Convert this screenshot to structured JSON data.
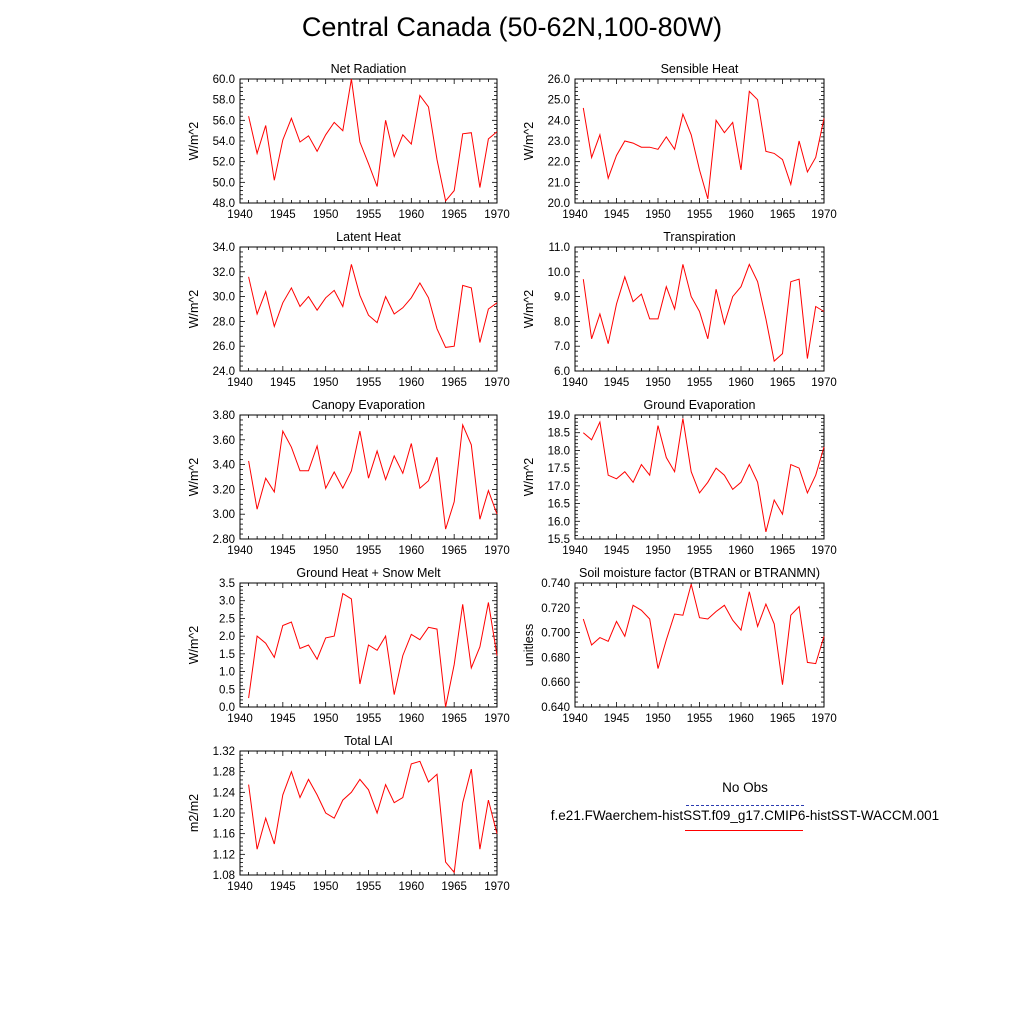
{
  "title": "Central Canada (50-62N,100-80W)",
  "line_color": "#ff0000",
  "obs_color": "#2b3bb0",
  "chart_data": [
    {
      "type": "line",
      "title": "Net Radiation",
      "ylabel": "W/m^2",
      "xlim": [
        1940,
        1970
      ],
      "ylim": [
        48.0,
        60.0
      ],
      "xticks": [
        1940,
        1945,
        1950,
        1955,
        1960,
        1965,
        1970
      ],
      "yticks": [
        "48.0",
        "50.0",
        "52.0",
        "54.0",
        "56.0",
        "58.0",
        "60.0"
      ],
      "x": [
        1941,
        1942,
        1943,
        1944,
        1945,
        1946,
        1947,
        1948,
        1949,
        1950,
        1951,
        1952,
        1953,
        1954,
        1955,
        1956,
        1957,
        1958,
        1959,
        1960,
        1961,
        1962,
        1963,
        1964,
        1965,
        1966,
        1967,
        1968,
        1969,
        1970
      ],
      "y": [
        56.4,
        52.8,
        55.5,
        50.2,
        54.1,
        56.2,
        53.9,
        54.5,
        53.0,
        54.6,
        55.8,
        55.0,
        60.0,
        53.9,
        51.8,
        49.6,
        56.0,
        52.5,
        54.6,
        53.7,
        58.4,
        57.3,
        52.2,
        48.2,
        49.2,
        54.7,
        54.8,
        49.5,
        54.2,
        54.9
      ]
    },
    {
      "type": "line",
      "title": "Sensible Heat",
      "ylabel": "W/m^2",
      "xlim": [
        1940,
        1970
      ],
      "ylim": [
        20.0,
        26.0
      ],
      "xticks": [
        1940,
        1945,
        1950,
        1955,
        1960,
        1965,
        1970
      ],
      "yticks": [
        "20.0",
        "21.0",
        "22.0",
        "23.0",
        "24.0",
        "25.0",
        "26.0"
      ],
      "x": [
        1941,
        1942,
        1943,
        1944,
        1945,
        1946,
        1947,
        1948,
        1949,
        1950,
        1951,
        1952,
        1953,
        1954,
        1955,
        1956,
        1957,
        1958,
        1959,
        1960,
        1961,
        1962,
        1963,
        1964,
        1965,
        1966,
        1967,
        1968,
        1969,
        1970
      ],
      "y": [
        24.6,
        22.2,
        23.3,
        21.2,
        22.3,
        23.0,
        22.9,
        22.7,
        22.7,
        22.6,
        23.2,
        22.6,
        24.3,
        23.3,
        21.6,
        20.2,
        24.0,
        23.4,
        23.9,
        21.6,
        25.4,
        25.0,
        22.5,
        22.4,
        22.1,
        20.9,
        23.0,
        21.5,
        22.2,
        24.1
      ]
    },
    {
      "type": "line",
      "title": "Latent Heat",
      "ylabel": "W/m^2",
      "xlim": [
        1940,
        1970
      ],
      "ylim": [
        24.0,
        34.0
      ],
      "xticks": [
        1940,
        1945,
        1950,
        1955,
        1960,
        1965,
        1970
      ],
      "yticks": [
        "24.0",
        "26.0",
        "28.0",
        "30.0",
        "32.0",
        "34.0"
      ],
      "x": [
        1941,
        1942,
        1943,
        1944,
        1945,
        1946,
        1947,
        1948,
        1949,
        1950,
        1951,
        1952,
        1953,
        1954,
        1955,
        1956,
        1957,
        1958,
        1959,
        1960,
        1961,
        1962,
        1963,
        1964,
        1965,
        1966,
        1967,
        1968,
        1969,
        1970
      ],
      "y": [
        31.6,
        28.6,
        30.4,
        27.6,
        29.5,
        30.7,
        29.2,
        30.0,
        28.9,
        29.9,
        30.5,
        29.2,
        32.6,
        30.1,
        28.5,
        27.9,
        30.0,
        28.6,
        29.1,
        29.9,
        31.1,
        29.9,
        27.4,
        25.9,
        26.0,
        30.9,
        30.7,
        26.3,
        29.0,
        29.5
      ]
    },
    {
      "type": "line",
      "title": "Transpiration",
      "ylabel": "W/m^2",
      "xlim": [
        1940,
        1970
      ],
      "ylim": [
        6.0,
        11.0
      ],
      "xticks": [
        1940,
        1945,
        1950,
        1955,
        1960,
        1965,
        1970
      ],
      "yticks": [
        "6.0",
        "7.0",
        "8.0",
        "9.0",
        "10.0",
        "11.0"
      ],
      "x": [
        1941,
        1942,
        1943,
        1944,
        1945,
        1946,
        1947,
        1948,
        1949,
        1950,
        1951,
        1952,
        1953,
        1954,
        1955,
        1956,
        1957,
        1958,
        1959,
        1960,
        1961,
        1962,
        1963,
        1964,
        1965,
        1966,
        1967,
        1968,
        1969,
        1970
      ],
      "y": [
        9.7,
        7.3,
        8.3,
        7.1,
        8.7,
        9.8,
        8.8,
        9.1,
        8.1,
        8.1,
        9.4,
        8.5,
        10.3,
        9.0,
        8.4,
        7.3,
        9.3,
        7.9,
        9.0,
        9.4,
        10.3,
        9.6,
        8.1,
        6.4,
        6.7,
        9.6,
        9.7,
        6.5,
        8.6,
        8.4
      ]
    },
    {
      "type": "line",
      "title": "Canopy Evaporation",
      "ylabel": "W/m^2",
      "xlim": [
        1940,
        1970
      ],
      "ylim": [
        2.8,
        3.8
      ],
      "xticks": [
        1940,
        1945,
        1950,
        1955,
        1960,
        1965,
        1970
      ],
      "yticks": [
        "2.80",
        "3.00",
        "3.20",
        "3.40",
        "3.60",
        "3.80"
      ],
      "x": [
        1941,
        1942,
        1943,
        1944,
        1945,
        1946,
        1947,
        1948,
        1949,
        1950,
        1951,
        1952,
        1953,
        1954,
        1955,
        1956,
        1957,
        1958,
        1959,
        1960,
        1961,
        1962,
        1963,
        1964,
        1965,
        1966,
        1967,
        1968,
        1969,
        1970
      ],
      "y": [
        3.43,
        3.04,
        3.29,
        3.18,
        3.67,
        3.54,
        3.35,
        3.35,
        3.55,
        3.21,
        3.34,
        3.21,
        3.35,
        3.67,
        3.29,
        3.51,
        3.28,
        3.47,
        3.33,
        3.57,
        3.21,
        3.27,
        3.46,
        2.88,
        3.1,
        3.72,
        3.56,
        2.96,
        3.19,
        3.0
      ]
    },
    {
      "type": "line",
      "title": "Ground Evaporation",
      "ylabel": "W/m^2",
      "xlim": [
        1940,
        1970
      ],
      "ylim": [
        15.5,
        19.0
      ],
      "xticks": [
        1940,
        1945,
        1950,
        1955,
        1960,
        1965,
        1970
      ],
      "yticks": [
        "15.5",
        "16.0",
        "16.5",
        "17.0",
        "17.5",
        "18.0",
        "18.5",
        "19.0"
      ],
      "x": [
        1941,
        1942,
        1943,
        1944,
        1945,
        1946,
        1947,
        1948,
        1949,
        1950,
        1951,
        1952,
        1953,
        1954,
        1955,
        1956,
        1957,
        1958,
        1959,
        1960,
        1961,
        1962,
        1963,
        1964,
        1965,
        1966,
        1967,
        1968,
        1969,
        1970
      ],
      "y": [
        18.5,
        18.3,
        18.8,
        17.3,
        17.2,
        17.4,
        17.1,
        17.6,
        17.3,
        18.7,
        17.8,
        17.4,
        18.9,
        17.4,
        16.8,
        17.1,
        17.5,
        17.3,
        16.9,
        17.1,
        17.6,
        17.1,
        15.7,
        16.6,
        16.2,
        17.6,
        17.5,
        16.8,
        17.3,
        18.1
      ]
    },
    {
      "type": "line",
      "title": "Ground Heat + Snow Melt",
      "ylabel": "W/m^2",
      "xlim": [
        1940,
        1970
      ],
      "ylim": [
        0.0,
        3.5
      ],
      "xticks": [
        1940,
        1945,
        1950,
        1955,
        1960,
        1965,
        1970
      ],
      "yticks": [
        "0.0",
        "0.5",
        "1.0",
        "1.5",
        "2.0",
        "2.5",
        "3.0",
        "3.5"
      ],
      "x": [
        1941,
        1942,
        1943,
        1944,
        1945,
        1946,
        1947,
        1948,
        1949,
        1950,
        1951,
        1952,
        1953,
        1954,
        1955,
        1956,
        1957,
        1958,
        1959,
        1960,
        1961,
        1962,
        1963,
        1964,
        1965,
        1966,
        1967,
        1968,
        1969,
        1970
      ],
      "y": [
        0.25,
        2.0,
        1.8,
        1.4,
        2.3,
        2.4,
        1.65,
        1.75,
        1.35,
        1.95,
        2.0,
        3.2,
        3.05,
        0.65,
        1.75,
        1.6,
        2.0,
        0.35,
        1.45,
        2.05,
        1.9,
        2.25,
        2.2,
        0.0,
        1.2,
        2.9,
        1.1,
        1.7,
        2.95,
        1.45
      ]
    },
    {
      "type": "line",
      "title": "Soil moisture factor (BTRAN or BTRANMN)",
      "ylabel": "unitless",
      "xlim": [
        1940,
        1970
      ],
      "ylim": [
        0.64,
        0.74
      ],
      "xticks": [
        1940,
        1945,
        1950,
        1955,
        1960,
        1965,
        1970
      ],
      "yticks": [
        "0.640",
        "0.660",
        "0.680",
        "0.700",
        "0.720",
        "0.740"
      ],
      "x": [
        1941,
        1942,
        1943,
        1944,
        1945,
        1946,
        1947,
        1948,
        1949,
        1950,
        1951,
        1952,
        1953,
        1954,
        1955,
        1956,
        1957,
        1958,
        1959,
        1960,
        1961,
        1962,
        1963,
        1964,
        1965,
        1966,
        1967,
        1968,
        1969,
        1970
      ],
      "y": [
        0.711,
        0.69,
        0.696,
        0.693,
        0.709,
        0.697,
        0.722,
        0.718,
        0.711,
        0.671,
        0.694,
        0.715,
        0.714,
        0.739,
        0.712,
        0.711,
        0.717,
        0.722,
        0.71,
        0.702,
        0.733,
        0.705,
        0.723,
        0.707,
        0.658,
        0.714,
        0.721,
        0.676,
        0.675,
        0.697
      ]
    },
    {
      "type": "line",
      "title": "Total LAI",
      "ylabel": "m2/m2",
      "xlim": [
        1940,
        1970
      ],
      "ylim": [
        1.08,
        1.32
      ],
      "xticks": [
        1940,
        1945,
        1950,
        1955,
        1960,
        1965,
        1970
      ],
      "yticks": [
        "1.08",
        "1.12",
        "1.16",
        "1.20",
        "1.24",
        "1.28",
        "1.32"
      ],
      "x": [
        1941,
        1942,
        1943,
        1944,
        1945,
        1946,
        1947,
        1948,
        1949,
        1950,
        1951,
        1952,
        1953,
        1954,
        1955,
        1956,
        1957,
        1958,
        1959,
        1960,
        1961,
        1962,
        1963,
        1964,
        1965,
        1966,
        1967,
        1968,
        1969,
        1970
      ],
      "y": [
        1.255,
        1.13,
        1.19,
        1.14,
        1.235,
        1.28,
        1.23,
        1.265,
        1.235,
        1.2,
        1.19,
        1.225,
        1.24,
        1.265,
        1.245,
        1.2,
        1.255,
        1.22,
        1.23,
        1.295,
        1.3,
        1.26,
        1.275,
        1.105,
        1.085,
        1.22,
        1.285,
        1.13,
        1.225,
        1.16
      ]
    }
  ],
  "legend": {
    "obs_label": "No Obs",
    "model_label": "f.e21.FWaerchem-histSST.f09_g17.CMIP6-histSST-WACCM.001"
  }
}
